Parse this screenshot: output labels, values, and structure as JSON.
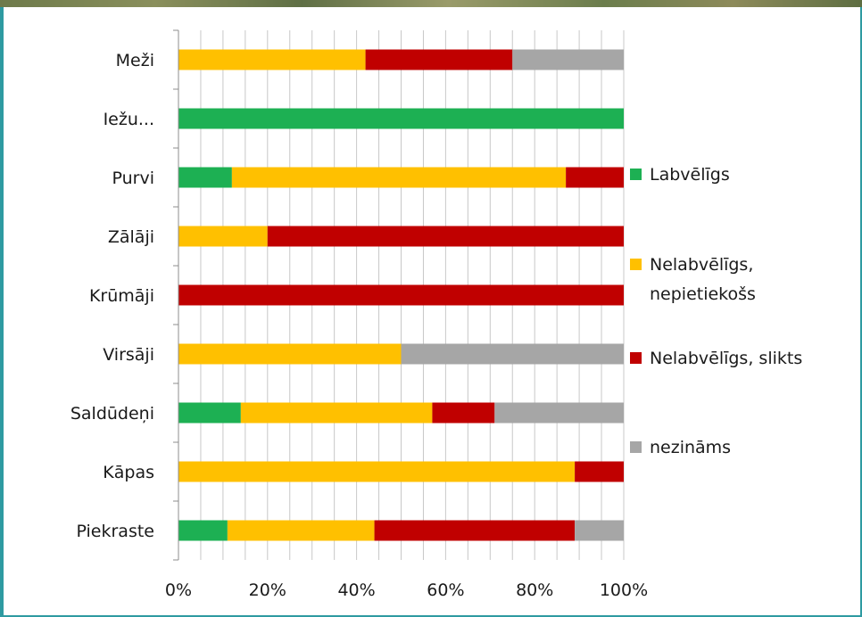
{
  "colors": {
    "background": "#2e9aa1",
    "plot_background": "#ffffff",
    "gridline": "#c8c8c8"
  },
  "chart_data": {
    "type": "bar",
    "orientation": "horizontal",
    "stacked": "percent",
    "title": "",
    "xlabel": "",
    "ylabel": "",
    "xlim": [
      0,
      100
    ],
    "x_ticks": [
      "0%",
      "20%",
      "40%",
      "60%",
      "80%",
      "100%"
    ],
    "grid": "vertical",
    "legend_position": "right",
    "categories": [
      "Meži",
      "Iežu...",
      "Purvi",
      "Zālāji",
      "Krūmāji",
      "Virsāji",
      "Saldūdeņi",
      "Kāpas",
      "Piekraste"
    ],
    "series": [
      {
        "name": "Labvēlīgs",
        "color": "#1db053",
        "values": [
          0,
          100,
          12,
          0,
          0,
          0,
          14,
          0,
          11
        ]
      },
      {
        "name": "Nelabvēlīgs, nepietiekošs",
        "color": "#ffc000",
        "values": [
          42,
          0,
          75,
          20,
          0,
          50,
          43,
          89,
          33
        ]
      },
      {
        "name": "Nelabvēlīgs, slikts",
        "color": "#c00000",
        "values": [
          33,
          0,
          13,
          80,
          100,
          0,
          14,
          11,
          45
        ]
      },
      {
        "name": "nezināms",
        "color": "#a6a6a6",
        "values": [
          25,
          0,
          0,
          0,
          0,
          50,
          29,
          0,
          11
        ]
      }
    ]
  }
}
